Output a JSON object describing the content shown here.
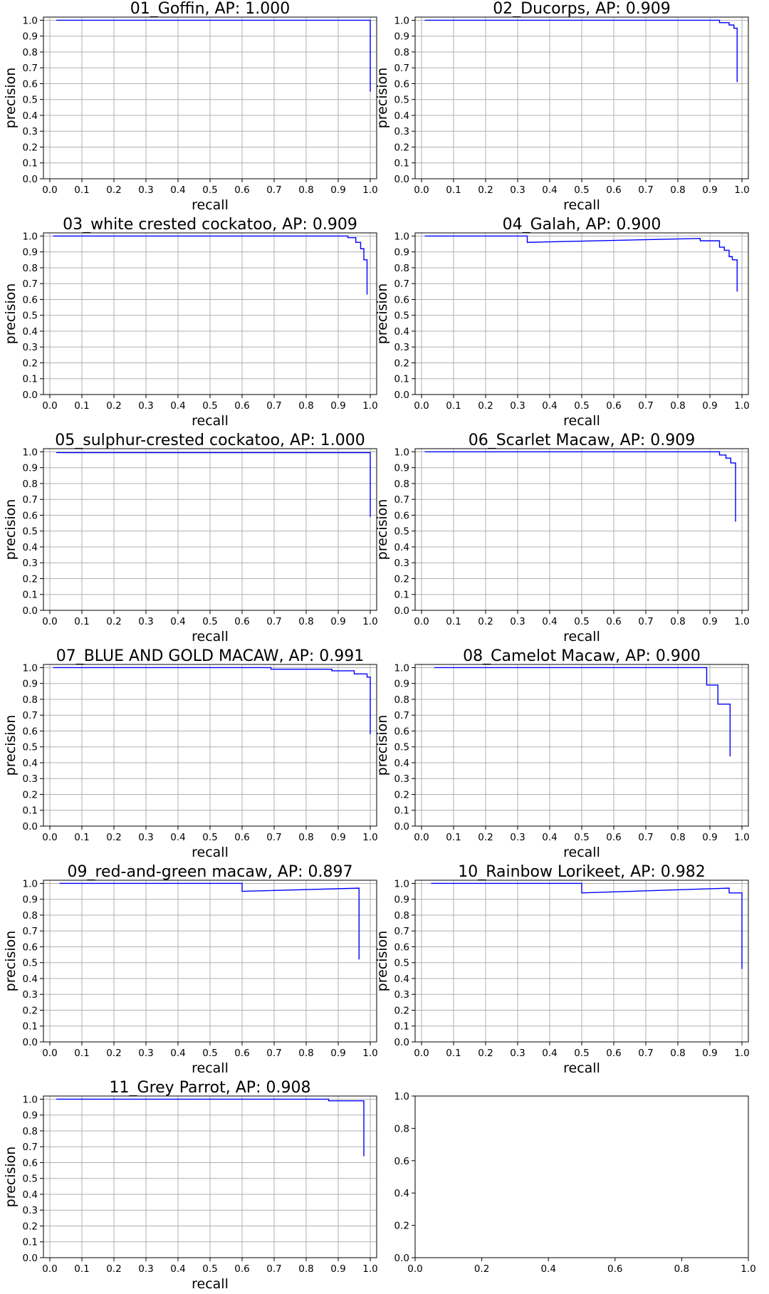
{
  "chart_data": [
    {
      "type": "line",
      "title": "01_Goffin, AP: 1.000",
      "xlabel": "recall",
      "ylabel": "precision",
      "xlim": [
        -0.02,
        1.02
      ],
      "ylim": [
        0,
        1.02
      ],
      "xticks": [
        "0.0",
        "0.1",
        "0.2",
        "0.3",
        "0.4",
        "0.5",
        "0.6",
        "0.7",
        "0.8",
        "0.9",
        "1.0"
      ],
      "yticks": [
        "0.0",
        "0.1",
        "0.2",
        "0.3",
        "0.4",
        "0.5",
        "0.6",
        "0.7",
        "0.8",
        "0.9",
        "1.0"
      ],
      "grid": true,
      "color": "#0000ff",
      "series": [
        {
          "x": [
            0.02,
            1.0,
            1.0
          ],
          "y": [
            1.0,
            1.0,
            0.55
          ]
        }
      ]
    },
    {
      "type": "line",
      "title": "02_Ducorps, AP: 0.909",
      "xlabel": "recall",
      "ylabel": "precision",
      "xlim": [
        -0.02,
        1.02
      ],
      "ylim": [
        0,
        1.02
      ],
      "xticks": [
        "0.0",
        "0.1",
        "0.2",
        "0.3",
        "0.4",
        "0.5",
        "0.6",
        "0.7",
        "0.8",
        "0.9",
        "1.0"
      ],
      "yticks": [
        "0.0",
        "0.1",
        "0.2",
        "0.3",
        "0.4",
        "0.5",
        "0.6",
        "0.7",
        "0.8",
        "0.9",
        "1.0"
      ],
      "grid": true,
      "color": "#0000ff",
      "series": [
        {
          "x": [
            0.01,
            0.93,
            0.93,
            0.96,
            0.96,
            0.975,
            0.975,
            0.985,
            0.985
          ],
          "y": [
            1.0,
            1.0,
            0.985,
            0.985,
            0.97,
            0.97,
            0.95,
            0.95,
            0.61
          ]
        }
      ]
    },
    {
      "type": "line",
      "title": "03_white crested cockatoo, AP: 0.909",
      "xlabel": "recall",
      "ylabel": "precision",
      "xlim": [
        -0.02,
        1.02
      ],
      "ylim": [
        0,
        1.02
      ],
      "xticks": [
        "0.0",
        "0.1",
        "0.2",
        "0.3",
        "0.4",
        "0.5",
        "0.6",
        "0.7",
        "0.8",
        "0.9",
        "1.0"
      ],
      "yticks": [
        "0.0",
        "0.1",
        "0.2",
        "0.3",
        "0.4",
        "0.5",
        "0.6",
        "0.7",
        "0.8",
        "0.9",
        "1.0"
      ],
      "grid": true,
      "color": "#0000ff",
      "series": [
        {
          "x": [
            0.01,
            0.93,
            0.93,
            0.955,
            0.955,
            0.97,
            0.97,
            0.98,
            0.98,
            0.99,
            0.99
          ],
          "y": [
            1.0,
            1.0,
            0.99,
            0.99,
            0.96,
            0.96,
            0.92,
            0.92,
            0.85,
            0.85,
            0.63
          ]
        }
      ]
    },
    {
      "type": "line",
      "title": "04_Galah, AP: 0.900",
      "xlabel": "recall",
      "ylabel": "precision",
      "xlim": [
        -0.02,
        1.02
      ],
      "ylim": [
        0,
        1.02
      ],
      "xticks": [
        "0.0",
        "0.1",
        "0.2",
        "0.3",
        "0.4",
        "0.5",
        "0.6",
        "0.7",
        "0.8",
        "0.9",
        "1.0"
      ],
      "yticks": [
        "0.0",
        "0.1",
        "0.2",
        "0.3",
        "0.4",
        "0.5",
        "0.6",
        "0.7",
        "0.8",
        "0.9",
        "1.0"
      ],
      "grid": true,
      "color": "#0000ff",
      "series": [
        {
          "x": [
            0.01,
            0.33,
            0.33,
            0.87,
            0.87,
            0.93,
            0.93,
            0.945,
            0.945,
            0.96,
            0.96,
            0.97,
            0.97,
            0.985,
            0.985
          ],
          "y": [
            1.0,
            1.0,
            0.96,
            0.985,
            0.97,
            0.97,
            0.93,
            0.93,
            0.91,
            0.91,
            0.87,
            0.87,
            0.85,
            0.85,
            0.65
          ]
        }
      ]
    },
    {
      "type": "line",
      "title": "05_sulphur-crested cockatoo, AP: 1.000",
      "xlabel": "recall",
      "ylabel": "precision",
      "xlim": [
        -0.02,
        1.02
      ],
      "ylim": [
        0,
        1.02
      ],
      "xticks": [
        "0.0",
        "0.1",
        "0.2",
        "0.3",
        "0.4",
        "0.5",
        "0.6",
        "0.7",
        "0.8",
        "0.9",
        "1.0"
      ],
      "yticks": [
        "0.0",
        "0.1",
        "0.2",
        "0.3",
        "0.4",
        "0.5",
        "0.6",
        "0.7",
        "0.8",
        "0.9",
        "1.0"
      ],
      "grid": true,
      "color": "#0000ff",
      "series": [
        {
          "x": [
            0.02,
            1.0,
            1.0
          ],
          "y": [
            0.995,
            0.995,
            0.59
          ]
        }
      ]
    },
    {
      "type": "line",
      "title": "06_Scarlet Macaw, AP: 0.909",
      "xlabel": "recall",
      "ylabel": "precision",
      "xlim": [
        -0.02,
        1.02
      ],
      "ylim": [
        0,
        1.02
      ],
      "xticks": [
        "0.0",
        "0.1",
        "0.2",
        "0.3",
        "0.4",
        "0.5",
        "0.6",
        "0.7",
        "0.8",
        "0.9",
        "1.0"
      ],
      "yticks": [
        "0.0",
        "0.1",
        "0.2",
        "0.3",
        "0.4",
        "0.5",
        "0.6",
        "0.7",
        "0.8",
        "0.9",
        "1.0"
      ],
      "grid": true,
      "color": "#0000ff",
      "series": [
        {
          "x": [
            0.01,
            0.93,
            0.93,
            0.95,
            0.95,
            0.965,
            0.965,
            0.98,
            0.98
          ],
          "y": [
            1.0,
            1.0,
            0.98,
            0.98,
            0.96,
            0.96,
            0.93,
            0.93,
            0.56
          ]
        }
      ]
    },
    {
      "type": "line",
      "title": "07_BLUE AND GOLD MACAW, AP: 0.991",
      "xlabel": "recall",
      "ylabel": "precision",
      "xlim": [
        -0.02,
        1.02
      ],
      "ylim": [
        0,
        1.02
      ],
      "xticks": [
        "0.0",
        "0.1",
        "0.2",
        "0.3",
        "0.4",
        "0.5",
        "0.6",
        "0.7",
        "0.8",
        "0.9",
        "1.0"
      ],
      "yticks": [
        "0.0",
        "0.1",
        "0.2",
        "0.3",
        "0.4",
        "0.5",
        "0.6",
        "0.7",
        "0.8",
        "0.9",
        "1.0"
      ],
      "grid": true,
      "color": "#0000ff",
      "series": [
        {
          "x": [
            0.01,
            0.69,
            0.69,
            0.88,
            0.88,
            0.95,
            0.95,
            0.99,
            0.99,
            1.0,
            1.0
          ],
          "y": [
            1.0,
            1.0,
            0.99,
            0.99,
            0.98,
            0.98,
            0.96,
            0.96,
            0.94,
            0.94,
            0.58
          ]
        }
      ]
    },
    {
      "type": "line",
      "title": "08_Camelot Macaw, AP: 0.900",
      "xlabel": "recall",
      "ylabel": "precision",
      "xlim": [
        -0.02,
        1.02
      ],
      "ylim": [
        0,
        1.02
      ],
      "xticks": [
        "0.0",
        "0.1",
        "0.2",
        "0.3",
        "0.4",
        "0.5",
        "0.6",
        "0.7",
        "0.8",
        "0.9",
        "1.0"
      ],
      "yticks": [
        "0.0",
        "0.1",
        "0.2",
        "0.3",
        "0.4",
        "0.5",
        "0.6",
        "0.7",
        "0.8",
        "0.9",
        "1.0"
      ],
      "grid": true,
      "color": "#0000ff",
      "series": [
        {
          "x": [
            0.04,
            0.89,
            0.89,
            0.925,
            0.925,
            0.963,
            0.963
          ],
          "y": [
            1.0,
            1.0,
            0.89,
            0.89,
            0.77,
            0.77,
            0.44
          ]
        }
      ]
    },
    {
      "type": "line",
      "title": "09_red-and-green macaw, AP: 0.897",
      "xlabel": "recall",
      "ylabel": "precision",
      "xlim": [
        -0.02,
        1.02
      ],
      "ylim": [
        0,
        1.02
      ],
      "xticks": [
        "0.0",
        "0.1",
        "0.2",
        "0.3",
        "0.4",
        "0.5",
        "0.6",
        "0.7",
        "0.8",
        "0.9",
        "1.0"
      ],
      "yticks": [
        "0.0",
        "0.1",
        "0.2",
        "0.3",
        "0.4",
        "0.5",
        "0.6",
        "0.7",
        "0.8",
        "0.9",
        "1.0"
      ],
      "grid": true,
      "color": "#0000ff",
      "series": [
        {
          "x": [
            0.03,
            0.6,
            0.6,
            0.965,
            0.965
          ],
          "y": [
            1.0,
            1.0,
            0.95,
            0.97,
            0.52
          ]
        }
      ]
    },
    {
      "type": "line",
      "title": "10_Rainbow Lorikeet, AP: 0.982",
      "xlabel": "recall",
      "ylabel": "precision",
      "xlim": [
        -0.02,
        1.02
      ],
      "ylim": [
        0,
        1.02
      ],
      "xticks": [
        "0.0",
        "0.1",
        "0.2",
        "0.3",
        "0.4",
        "0.5",
        "0.6",
        "0.7",
        "0.8",
        "0.9",
        "1.0"
      ],
      "yticks": [
        "0.0",
        "0.1",
        "0.2",
        "0.3",
        "0.4",
        "0.5",
        "0.6",
        "0.7",
        "0.8",
        "0.9",
        "1.0"
      ],
      "grid": true,
      "color": "#0000ff",
      "series": [
        {
          "x": [
            0.03,
            0.5,
            0.5,
            0.96,
            0.96,
            1.0,
            1.0
          ],
          "y": [
            1.0,
            1.0,
            0.94,
            0.97,
            0.94,
            0.94,
            0.46
          ]
        }
      ]
    },
    {
      "type": "line",
      "title": "11_Grey Parrot, AP: 0.908",
      "xlabel": "recall",
      "ylabel": "precision",
      "xlim": [
        -0.02,
        1.02
      ],
      "ylim": [
        0,
        1.02
      ],
      "xticks": [
        "0.0",
        "0.1",
        "0.2",
        "0.3",
        "0.4",
        "0.5",
        "0.6",
        "0.7",
        "0.8",
        "0.9",
        "1.0"
      ],
      "yticks": [
        "0.0",
        "0.1",
        "0.2",
        "0.3",
        "0.4",
        "0.5",
        "0.6",
        "0.7",
        "0.8",
        "0.9",
        "1.0"
      ],
      "grid": true,
      "color": "#0000ff",
      "series": [
        {
          "x": [
            0.02,
            0.87,
            0.87,
            0.98,
            0.98
          ],
          "y": [
            1.0,
            1.0,
            0.99,
            0.99,
            0.64
          ]
        }
      ]
    },
    {
      "type": "line",
      "title": "",
      "xlabel": "",
      "ylabel": "",
      "xlim": [
        0,
        1
      ],
      "ylim": [
        0,
        1
      ],
      "xticks": [
        "0.0",
        "0.2",
        "0.4",
        "0.6",
        "0.8",
        "1.0"
      ],
      "yticks": [
        "0.0",
        "0.2",
        "0.4",
        "0.6",
        "0.8",
        "1.0"
      ],
      "grid": false,
      "color": "#0000ff",
      "series": []
    }
  ]
}
